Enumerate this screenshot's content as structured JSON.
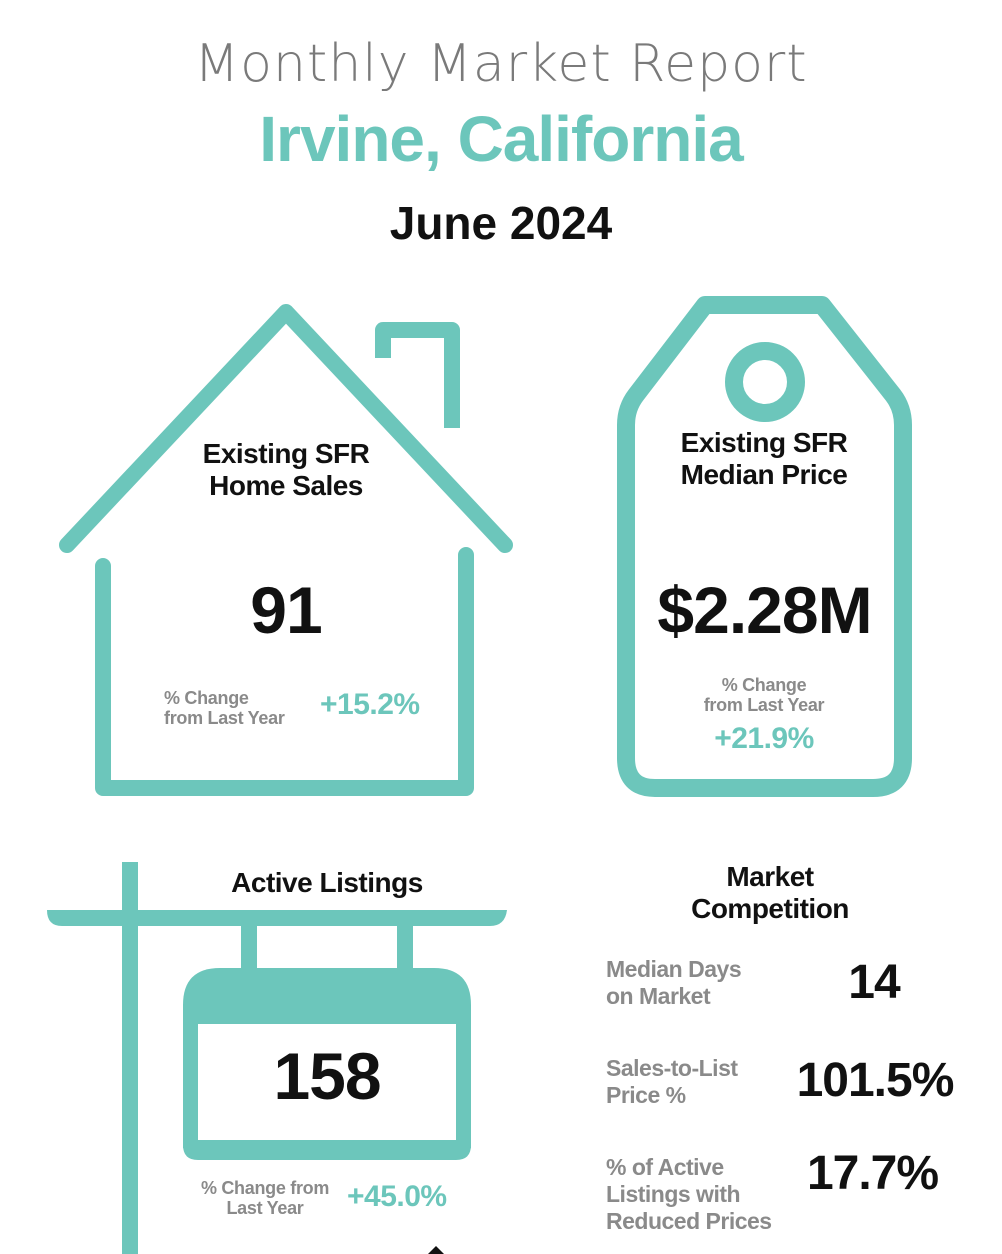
{
  "header": {
    "report_title": "Monthly Market Report",
    "city": "Irvine, California",
    "month": "June 2024"
  },
  "colors": {
    "accent": "#6cc6bb",
    "text_dark": "#111111",
    "text_gray": "#8a8a8a"
  },
  "home_sales": {
    "label_line1": "Existing SFR",
    "label_line2": "Home Sales",
    "value": "91",
    "change_label_line1": "% Change",
    "change_label_line2": "from Last Year",
    "change_value": "+15.2%",
    "icon": "house-icon"
  },
  "median_price": {
    "label_line1": "Existing SFR",
    "label_line2": "Median Price",
    "value": "$2.28M",
    "change_label_line1": "% Change",
    "change_label_line2": "from Last Year",
    "change_value": "+21.9%",
    "icon": "price-tag-icon"
  },
  "active_listings": {
    "label": "Active Listings",
    "value": "158",
    "change_label_line1": "% Change from",
    "change_label_line2": "Last Year",
    "change_value": "+45.0%",
    "icon": "real-estate-sign-icon"
  },
  "market_competition": {
    "title_line1": "Market",
    "title_line2": "Competition",
    "metrics": [
      {
        "label_line1": "Median Days",
        "label_line2": "on Market",
        "label_line3": "",
        "value": "14"
      },
      {
        "label_line1": "Sales-to-List",
        "label_line2": "Price %",
        "label_line3": "",
        "value": "101.5%"
      },
      {
        "label_line1": "% of Active",
        "label_line2": "Listings with",
        "label_line3": "Reduced Prices",
        "value": "17.7%"
      }
    ]
  }
}
